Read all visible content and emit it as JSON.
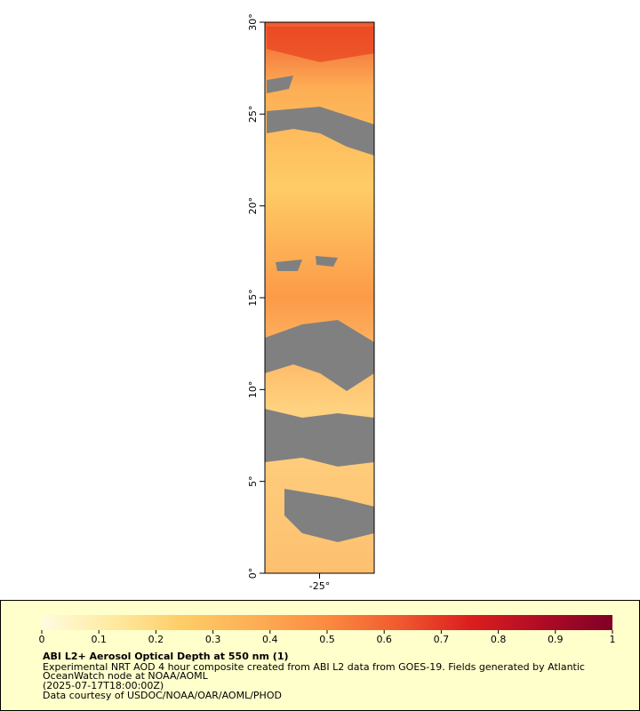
{
  "map": {
    "ylim": [
      0,
      30
    ],
    "yticks": [
      {
        "value": 0,
        "label": "0°"
      },
      {
        "value": 5,
        "label": "5°"
      },
      {
        "value": 10,
        "label": "10°"
      },
      {
        "value": 15,
        "label": "15°"
      },
      {
        "value": 20,
        "label": "20°"
      },
      {
        "value": 25,
        "label": "25°"
      },
      {
        "value": 30,
        "label": "30°"
      }
    ],
    "xlim": [
      -28,
      -22
    ],
    "xticks": [
      {
        "value": -25,
        "label": "-25°"
      }
    ]
  },
  "colorbar": {
    "range": [
      0,
      1
    ],
    "ticks": [
      0,
      0.1,
      0.2,
      0.3,
      0.4,
      0.5,
      0.6,
      0.7,
      0.8,
      0.9,
      1
    ],
    "colors": [
      "#fffbe0",
      "#ffeaa0",
      "#fecc66",
      "#fdae55",
      "#fc8a40",
      "#f05a30",
      "#dc1e1e",
      "#b00c26",
      "#800026"
    ]
  },
  "legend": {
    "title": "ABI L2+ Aerosol Optical Depth at 550 nm (1)",
    "lines": [
      "Experimental NRT AOD 4 hour composite created from ABI L2 data from GOES-19. Fields generated by Atlantic",
      "OceanWatch node at NOAA/AOML",
      "(2025-07-17T18:00:00Z)",
      "Data courtesy of USDOC/NOAA/OAR/AOML/PHOD"
    ]
  }
}
